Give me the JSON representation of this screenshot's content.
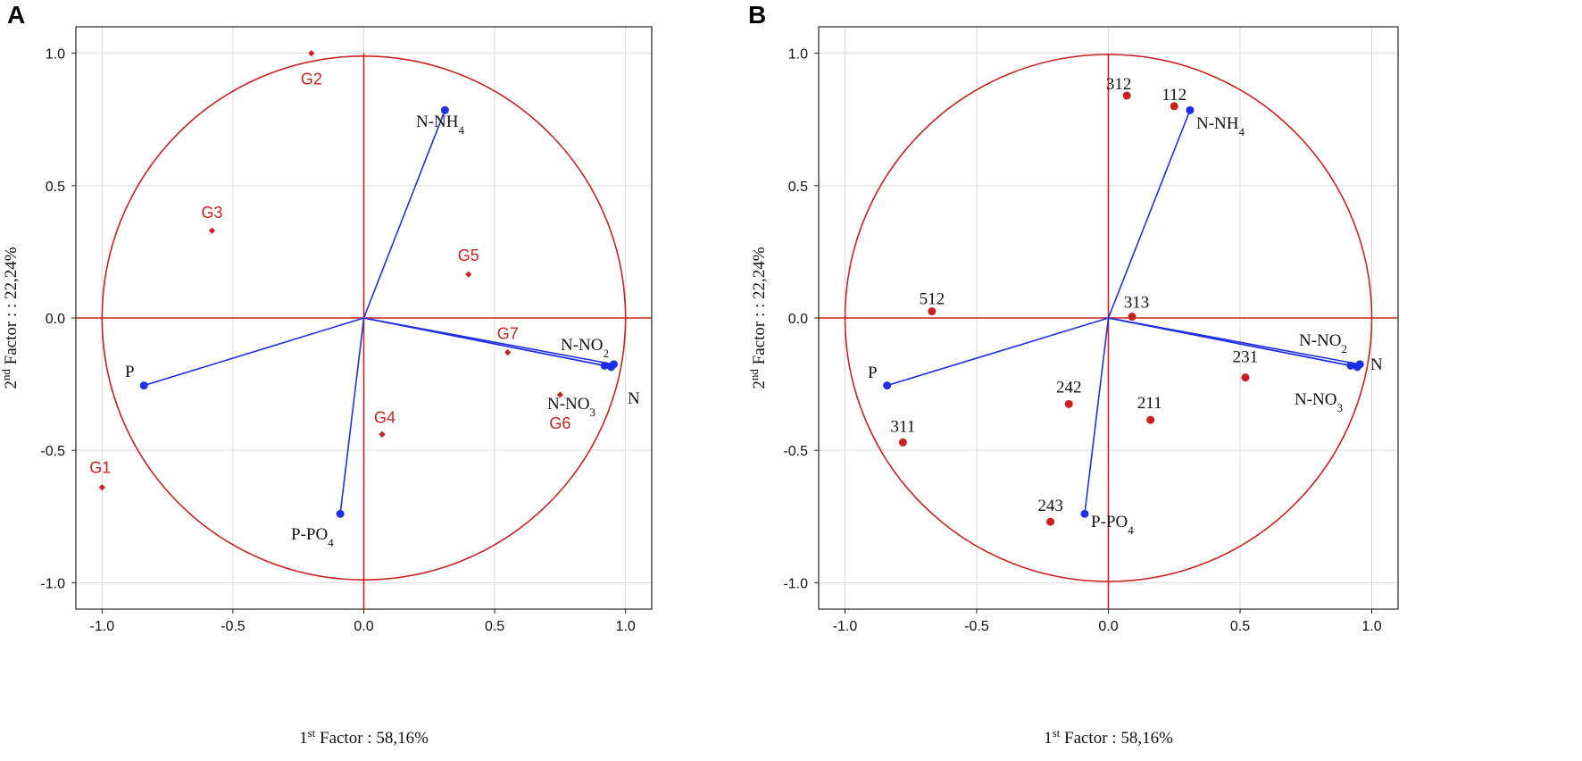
{
  "colors": {
    "circle": "#cc2020",
    "vector": "#1f2fe6",
    "grid": "#d9d9d9",
    "point": "#cc2020"
  },
  "axes": {
    "x_label": {
      "pre": "1",
      "sup": "st",
      "post": " Factor : 58,16%"
    },
    "y_label": {
      "pre": "2",
      "sup": "nd",
      "post": " Factor : : 22,24%"
    }
  },
  "chart_data": [
    {
      "panel": "A",
      "type": "scatter",
      "title": "",
      "xlim": [
        -1.1,
        1.1
      ],
      "ylim": [
        -1.1,
        1.1
      ],
      "x_ticks": [
        "-1.0",
        "-0.5",
        "0.0",
        "0.5",
        "1.0"
      ],
      "y_ticks": [
        "1.0",
        "0.5",
        "0.0",
        "-0.5",
        "-1.0"
      ],
      "grid": true,
      "unit_circle": true,
      "vectors": [
        {
          "base": "N-NH",
          "sub": "4",
          "x": 0.31,
          "y": 0.785
        },
        {
          "base": "N-NO",
          "sub": "2",
          "x": 0.92,
          "y": -0.18
        },
        {
          "base": "N-NO",
          "sub": "3",
          "x": 0.945,
          "y": -0.185
        },
        {
          "base": "N",
          "sub": "",
          "x": 0.955,
          "y": -0.175
        },
        {
          "base": "P",
          "sub": "",
          "x": -0.84,
          "y": -0.255
        },
        {
          "base": "P-PO",
          "sub": "4",
          "x": -0.09,
          "y": -0.74
        }
      ],
      "points": [
        {
          "label": "G1",
          "x": -1.0,
          "y": -0.64
        },
        {
          "label": "G2",
          "x": -0.2,
          "y": 1.0
        },
        {
          "label": "G3",
          "x": -0.58,
          "y": 0.33
        },
        {
          "label": "G4",
          "x": 0.07,
          "y": -0.44
        },
        {
          "label": "G5",
          "x": 0.4,
          "y": 0.165
        },
        {
          "label": "G6",
          "x": 0.75,
          "y": -0.29
        },
        {
          "label": "G7",
          "x": 0.55,
          "y": -0.13
        }
      ]
    },
    {
      "panel": "B",
      "type": "scatter",
      "title": "",
      "xlim": [
        -1.1,
        1.1
      ],
      "ylim": [
        -1.1,
        1.1
      ],
      "x_ticks": [
        "-1.0",
        "-0.5",
        "0.0",
        "0.5",
        "1.0"
      ],
      "y_ticks": [
        "1.0",
        "0.5",
        "0.0",
        "-0.5",
        "-1.0"
      ],
      "grid": true,
      "unit_circle": true,
      "vectors": [
        {
          "base": "N-NH",
          "sub": "4",
          "x": 0.31,
          "y": 0.785
        },
        {
          "base": "N-NO",
          "sub": "2",
          "x": 0.92,
          "y": -0.18
        },
        {
          "base": "N-NO",
          "sub": "3",
          "x": 0.945,
          "y": -0.185
        },
        {
          "base": "N",
          "sub": "",
          "x": 0.955,
          "y": -0.175
        },
        {
          "base": "P",
          "sub": "",
          "x": -0.84,
          "y": -0.255
        },
        {
          "base": "P-PO",
          "sub": "4",
          "x": -0.09,
          "y": -0.74
        }
      ],
      "points": [
        {
          "label": "312",
          "x": 0.07,
          "y": 0.84
        },
        {
          "label": "112",
          "x": 0.25,
          "y": 0.8
        },
        {
          "label": "512",
          "x": -0.67,
          "y": 0.025
        },
        {
          "label": "313",
          "x": 0.09,
          "y": 0.005
        },
        {
          "label": "231",
          "x": 0.52,
          "y": -0.225
        },
        {
          "label": "242",
          "x": -0.15,
          "y": -0.325
        },
        {
          "label": "211",
          "x": 0.16,
          "y": -0.385
        },
        {
          "label": "311",
          "x": -0.78,
          "y": -0.47
        },
        {
          "label": "243",
          "x": -0.22,
          "y": -0.77
        }
      ]
    }
  ]
}
